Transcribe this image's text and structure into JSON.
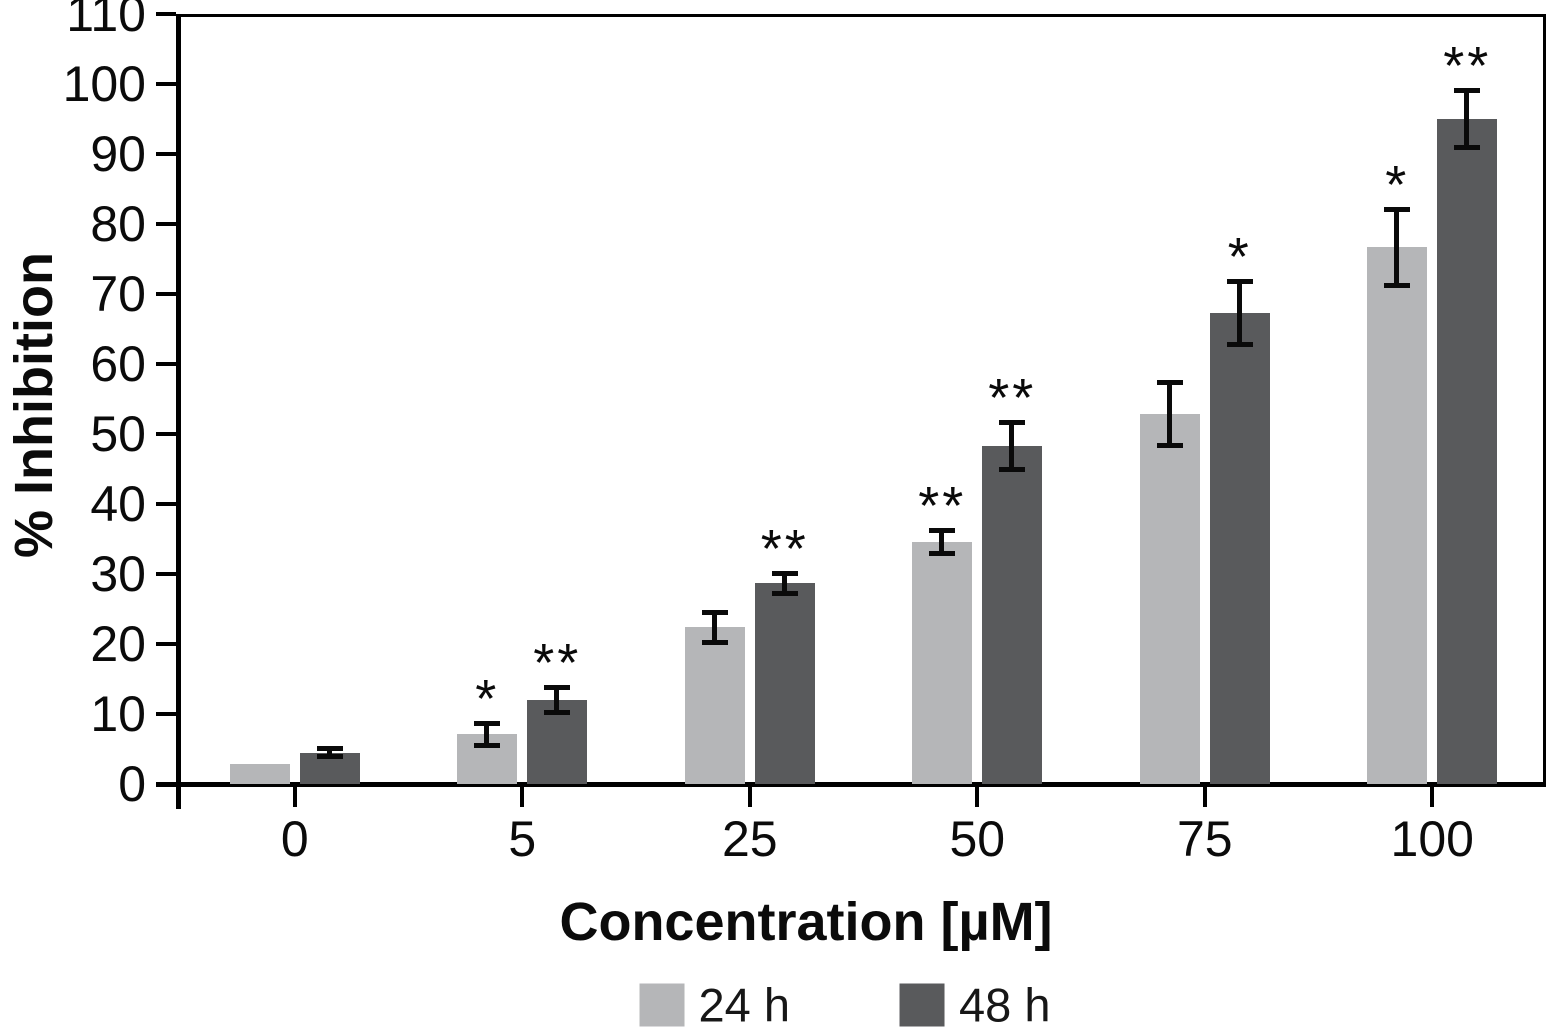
{
  "figure": {
    "background": "#ffffff",
    "axis_color": "#000000"
  },
  "chart_data": {
    "type": "bar",
    "title": "",
    "xlabel": "Concentration [µM]",
    "ylabel": "% Inhibition",
    "categories": [
      "0",
      "5",
      "25",
      "50",
      "75",
      "100"
    ],
    "ylim": [
      0,
      110
    ],
    "y_ticks": [
      0,
      10,
      20,
      30,
      40,
      50,
      60,
      70,
      80,
      90,
      100,
      110
    ],
    "grid": false,
    "legend_position": "bottom",
    "series": [
      {
        "name": "24 h",
        "color": "#b5b6b8",
        "values": [
          2.8,
          7.1,
          22.4,
          34.6,
          52.9,
          76.7
        ],
        "errors": [
          0,
          1.6,
          2.2,
          1.7,
          4.6,
          5.5
        ],
        "significance": [
          "",
          "*",
          "",
          "**",
          "",
          "*"
        ]
      },
      {
        "name": "48 h",
        "color": "#595a5c",
        "values": [
          4.5,
          12.0,
          28.7,
          48.3,
          67.3,
          95.0
        ],
        "errors": [
          0.7,
          1.8,
          1.5,
          3.4,
          4.6,
          4.2
        ],
        "significance": [
          "",
          "**",
          "**",
          "**",
          "*",
          "**"
        ]
      }
    ]
  }
}
